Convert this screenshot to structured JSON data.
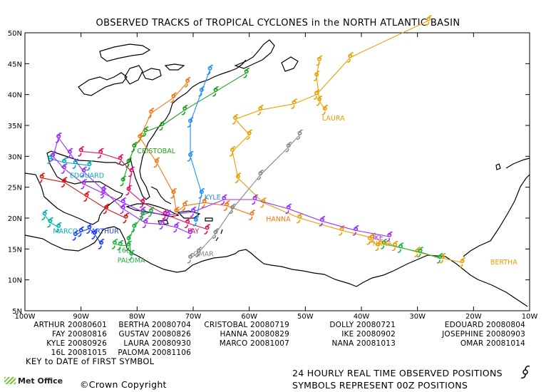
{
  "title": "OBSERVED TRACKS of TROPICAL CYCLONES in the NORTH ATLANTIC BASIN",
  "axes": {
    "lon_labels": [
      "100W",
      "90W",
      "80W",
      "70W",
      "60W",
      "50W",
      "40W",
      "30W",
      "20W",
      "10W"
    ],
    "lat_labels": [
      "5N",
      "10N",
      "15N",
      "20N",
      "25N",
      "30N",
      "35N",
      "40N",
      "45N",
      "50N"
    ]
  },
  "legend": [
    [
      "ARTHUR 20080601",
      "BERTHA 20080704",
      "CRISTOBAL 20080719",
      "DOLLY 20080721",
      "EDOUARD 20080804"
    ],
    [
      "FAY 20080816",
      "GUSTAV 20080826",
      "HANNA 20080829",
      "IKE 20080902",
      "JOSEPHINE 20080903"
    ],
    [
      "KYLE 20080926",
      "LAURA 20080930",
      "MARCO 20081007",
      "NANA 20081013",
      "OMAR 20081014"
    ],
    [
      "16L 20081015",
      "PALOMA 20081106",
      "",
      "",
      ""
    ]
  ],
  "key_text": "KEY to DATE of FIRST SYMBOL",
  "footer_right_1": "24 HOURLY REAL TIME OBSERVED POSITIONS",
  "footer_right_2": "SYMBOLS REPRESENT 00Z POSITIONS",
  "copyright": "©Crown Copyright",
  "logo_text": "Met Office",
  "storms": [
    {
      "name": "ARTHUR",
      "color": "#1e3cff",
      "label_pos": [
        -88.2,
        17.5
      ],
      "track": [
        [
          -86.4,
          15.8
        ],
        [
          -87.6,
          17.4
        ],
        [
          -88.5,
          18.3
        ],
        [
          -90.0,
          17.8
        ],
        [
          -91.0,
          17.2
        ]
      ]
    },
    {
      "name": "BERTHA",
      "color": "#e8a000",
      "label_pos": [
        -17,
        12.5
      ],
      "track": [
        [
          -22,
          12.8
        ],
        [
          -25.5,
          13.5
        ],
        [
          -30.0,
          14.5
        ],
        [
          -34.0,
          15.5
        ],
        [
          -38.0,
          16.8
        ],
        [
          -43.5,
          18.0
        ],
        [
          -51.0,
          20.0
        ],
        [
          -57.5,
          22.5
        ],
        [
          -62.0,
          26.5
        ],
        [
          -63.0,
          30.8
        ],
        [
          -60.0,
          33.5
        ],
        [
          -62.5,
          36.0
        ],
        [
          -58.0,
          37.5
        ],
        [
          -52.0,
          38.5
        ],
        [
          -48.0,
          40.0
        ],
        [
          -42.0,
          46.0
        ],
        [
          -28.0,
          52.0
        ]
      ]
    },
    {
      "name": "CRISTOBAL",
      "color": "#1ea01e",
      "label_pos": [
        -80,
        30.5
      ],
      "track": [
        [
          -82.5,
          26.0
        ],
        [
          -81.5,
          29.0
        ],
        [
          -80.5,
          31.5
        ],
        [
          -78.5,
          34.0
        ],
        [
          -75.5,
          35.0
        ],
        [
          -71.5,
          37.5
        ],
        [
          -66.0,
          40.5
        ],
        [
          -60.5,
          43.5
        ]
      ]
    },
    {
      "name": "DOLLY",
      "color": "#e01010",
      "label_pos": [
        0,
        0
      ],
      "track": [
        [
          -97.0,
          26.5
        ],
        [
          -93.0,
          25.8
        ],
        [
          -89.0,
          23.5
        ],
        [
          -85.5,
          21.5
        ],
        [
          -82.0,
          20.0
        ]
      ]
    },
    {
      "name": "EDOUARD",
      "color": "#00b0b0",
      "label_pos": [
        -92,
        26.5
      ],
      "track": [
        [
          -88.5,
          28.5
        ],
        [
          -91.0,
          28.8
        ],
        [
          -93.0,
          29.0
        ],
        [
          -95.5,
          29.6
        ]
      ]
    },
    {
      "name": "FAY",
      "color": "#e01060",
      "label_pos": [
        -71,
        17.5
      ],
      "track": [
        [
          -67.5,
          18.2
        ],
        [
          -71.0,
          19.2
        ],
        [
          -75.0,
          20.6
        ],
        [
          -79.0,
          22.5
        ],
        [
          -81.5,
          24.5
        ],
        [
          -81.0,
          27.5
        ],
        [
          -83.0,
          29.5
        ],
        [
          -86.5,
          30.5
        ],
        [
          -90.0,
          30.8
        ]
      ]
    },
    {
      "name": "GUSTAV",
      "color": "#9b2fff",
      "label_pos": [
        0,
        0
      ],
      "track": [
        [
          -70.5,
          17.5
        ],
        [
          -73.0,
          18.5
        ],
        [
          -75.5,
          19.0
        ],
        [
          -78.5,
          19.2
        ],
        [
          -82.5,
          21.5
        ],
        [
          -86.0,
          24.5
        ],
        [
          -89.5,
          27.5
        ],
        [
          -92.0,
          30.5
        ],
        [
          -94.0,
          33.0
        ]
      ]
    },
    {
      "name": "HANNA",
      "color": "#f07810",
      "label_pos": [
        -57,
        19.5
      ],
      "track": [
        [
          -59.5,
          20.5
        ],
        [
          -64.0,
          22.0
        ],
        [
          -68.0,
          22.5
        ],
        [
          -71.5,
          22.0
        ],
        [
          -73.0,
          21.0
        ],
        [
          -73.5,
          24.0
        ],
        [
          -76.5,
          29.0
        ],
        [
          -79.5,
          33.0
        ],
        [
          -77.5,
          37.0
        ],
        [
          -73.5,
          39.5
        ],
        [
          -71.0,
          42.0
        ]
      ]
    },
    {
      "name": "IKE",
      "color": "#9b2fff",
      "label_pos": [
        -38,
        16.5
      ],
      "track": [
        [
          -35.0,
          17.0
        ],
        [
          -41.0,
          18.0
        ],
        [
          -47.0,
          19.5
        ],
        [
          -53.0,
          21.5
        ],
        [
          -59.0,
          23.0
        ],
        [
          -64.5,
          23.0
        ],
        [
          -70.0,
          21.0
        ],
        [
          -74.5,
          20.5
        ],
        [
          -79.0,
          21.0
        ],
        [
          -82.5,
          22.5
        ],
        [
          -86.0,
          24.0
        ],
        [
          -89.5,
          25.5
        ],
        [
          -93.0,
          28.0
        ],
        [
          -95.0,
          30.0
        ],
        [
          -94.0,
          33.0
        ]
      ]
    },
    {
      "name": "JOSEPHINE",
      "color": "#20b040",
      "label_pos": [
        0,
        0
      ],
      "track": [
        [
          -26.0,
          13.5
        ],
        [
          -29.5,
          14.5
        ],
        [
          -33.0,
          15.2
        ],
        [
          -36.0,
          15.8
        ]
      ]
    },
    {
      "name": "KYLE",
      "color": "#1e90ff",
      "label_pos": [
        -68,
        23.0
      ],
      "track": [
        [
          -69.5,
          19.5
        ],
        [
          -68.5,
          24.0
        ],
        [
          -70.5,
          30.0
        ],
        [
          -70.5,
          35.5
        ],
        [
          -68.5,
          40.5
        ],
        [
          -67.0,
          44.0
        ]
      ]
    },
    {
      "name": "LAURA",
      "color": "#e8a000",
      "label_pos": [
        -47,
        35.8
      ],
      "track": [
        [
          -47.5,
          45.5
        ],
        [
          -48.0,
          43.0
        ],
        [
          -47.5,
          39.0
        ],
        [
          -46.5,
          37.5
        ]
      ]
    },
    {
      "name": "MARCO",
      "color": "#00b0b0",
      "label_pos": [
        -95,
        17.5
      ],
      "track": [
        [
          -94.0,
          18.5
        ],
        [
          -95.5,
          19.3
        ],
        [
          -96.5,
          20.5
        ]
      ]
    },
    {
      "name": "NANA",
      "color": "#e8a000",
      "label_pos": [
        -38,
        15.5
      ],
      "track": [
        [
          -37.0,
          15.5
        ],
        [
          -38.5,
          16.5
        ]
      ]
    },
    {
      "name": "OMAR",
      "color": "#888888",
      "label_pos": [
        -70,
        13.8
      ],
      "track": [
        [
          -70.5,
          13.5
        ],
        [
          -69.0,
          14.5
        ],
        [
          -66.0,
          17.5
        ],
        [
          -63.0,
          21.5
        ],
        [
          -58.0,
          27.0
        ],
        [
          -53.0,
          31.5
        ],
        [
          -51.0,
          33.5
        ]
      ]
    },
    {
      "name": "16L",
      "color": "#20b040",
      "label_pos": [
        -83.5,
        14.4
      ],
      "track": [
        [
          -81.5,
          15.5
        ],
        [
          -83.0,
          15.6
        ],
        [
          -84.0,
          15.8
        ]
      ]
    },
    {
      "name": "PALOMA",
      "color": "#20b040",
      "label_pos": [
        -83.5,
        12.8
      ],
      "track": [
        [
          -81.0,
          14.0
        ],
        [
          -81.5,
          16.5
        ],
        [
          -80.5,
          18.5
        ],
        [
          -79.0,
          20.5
        ],
        [
          -77.5,
          21.0
        ]
      ]
    }
  ]
}
